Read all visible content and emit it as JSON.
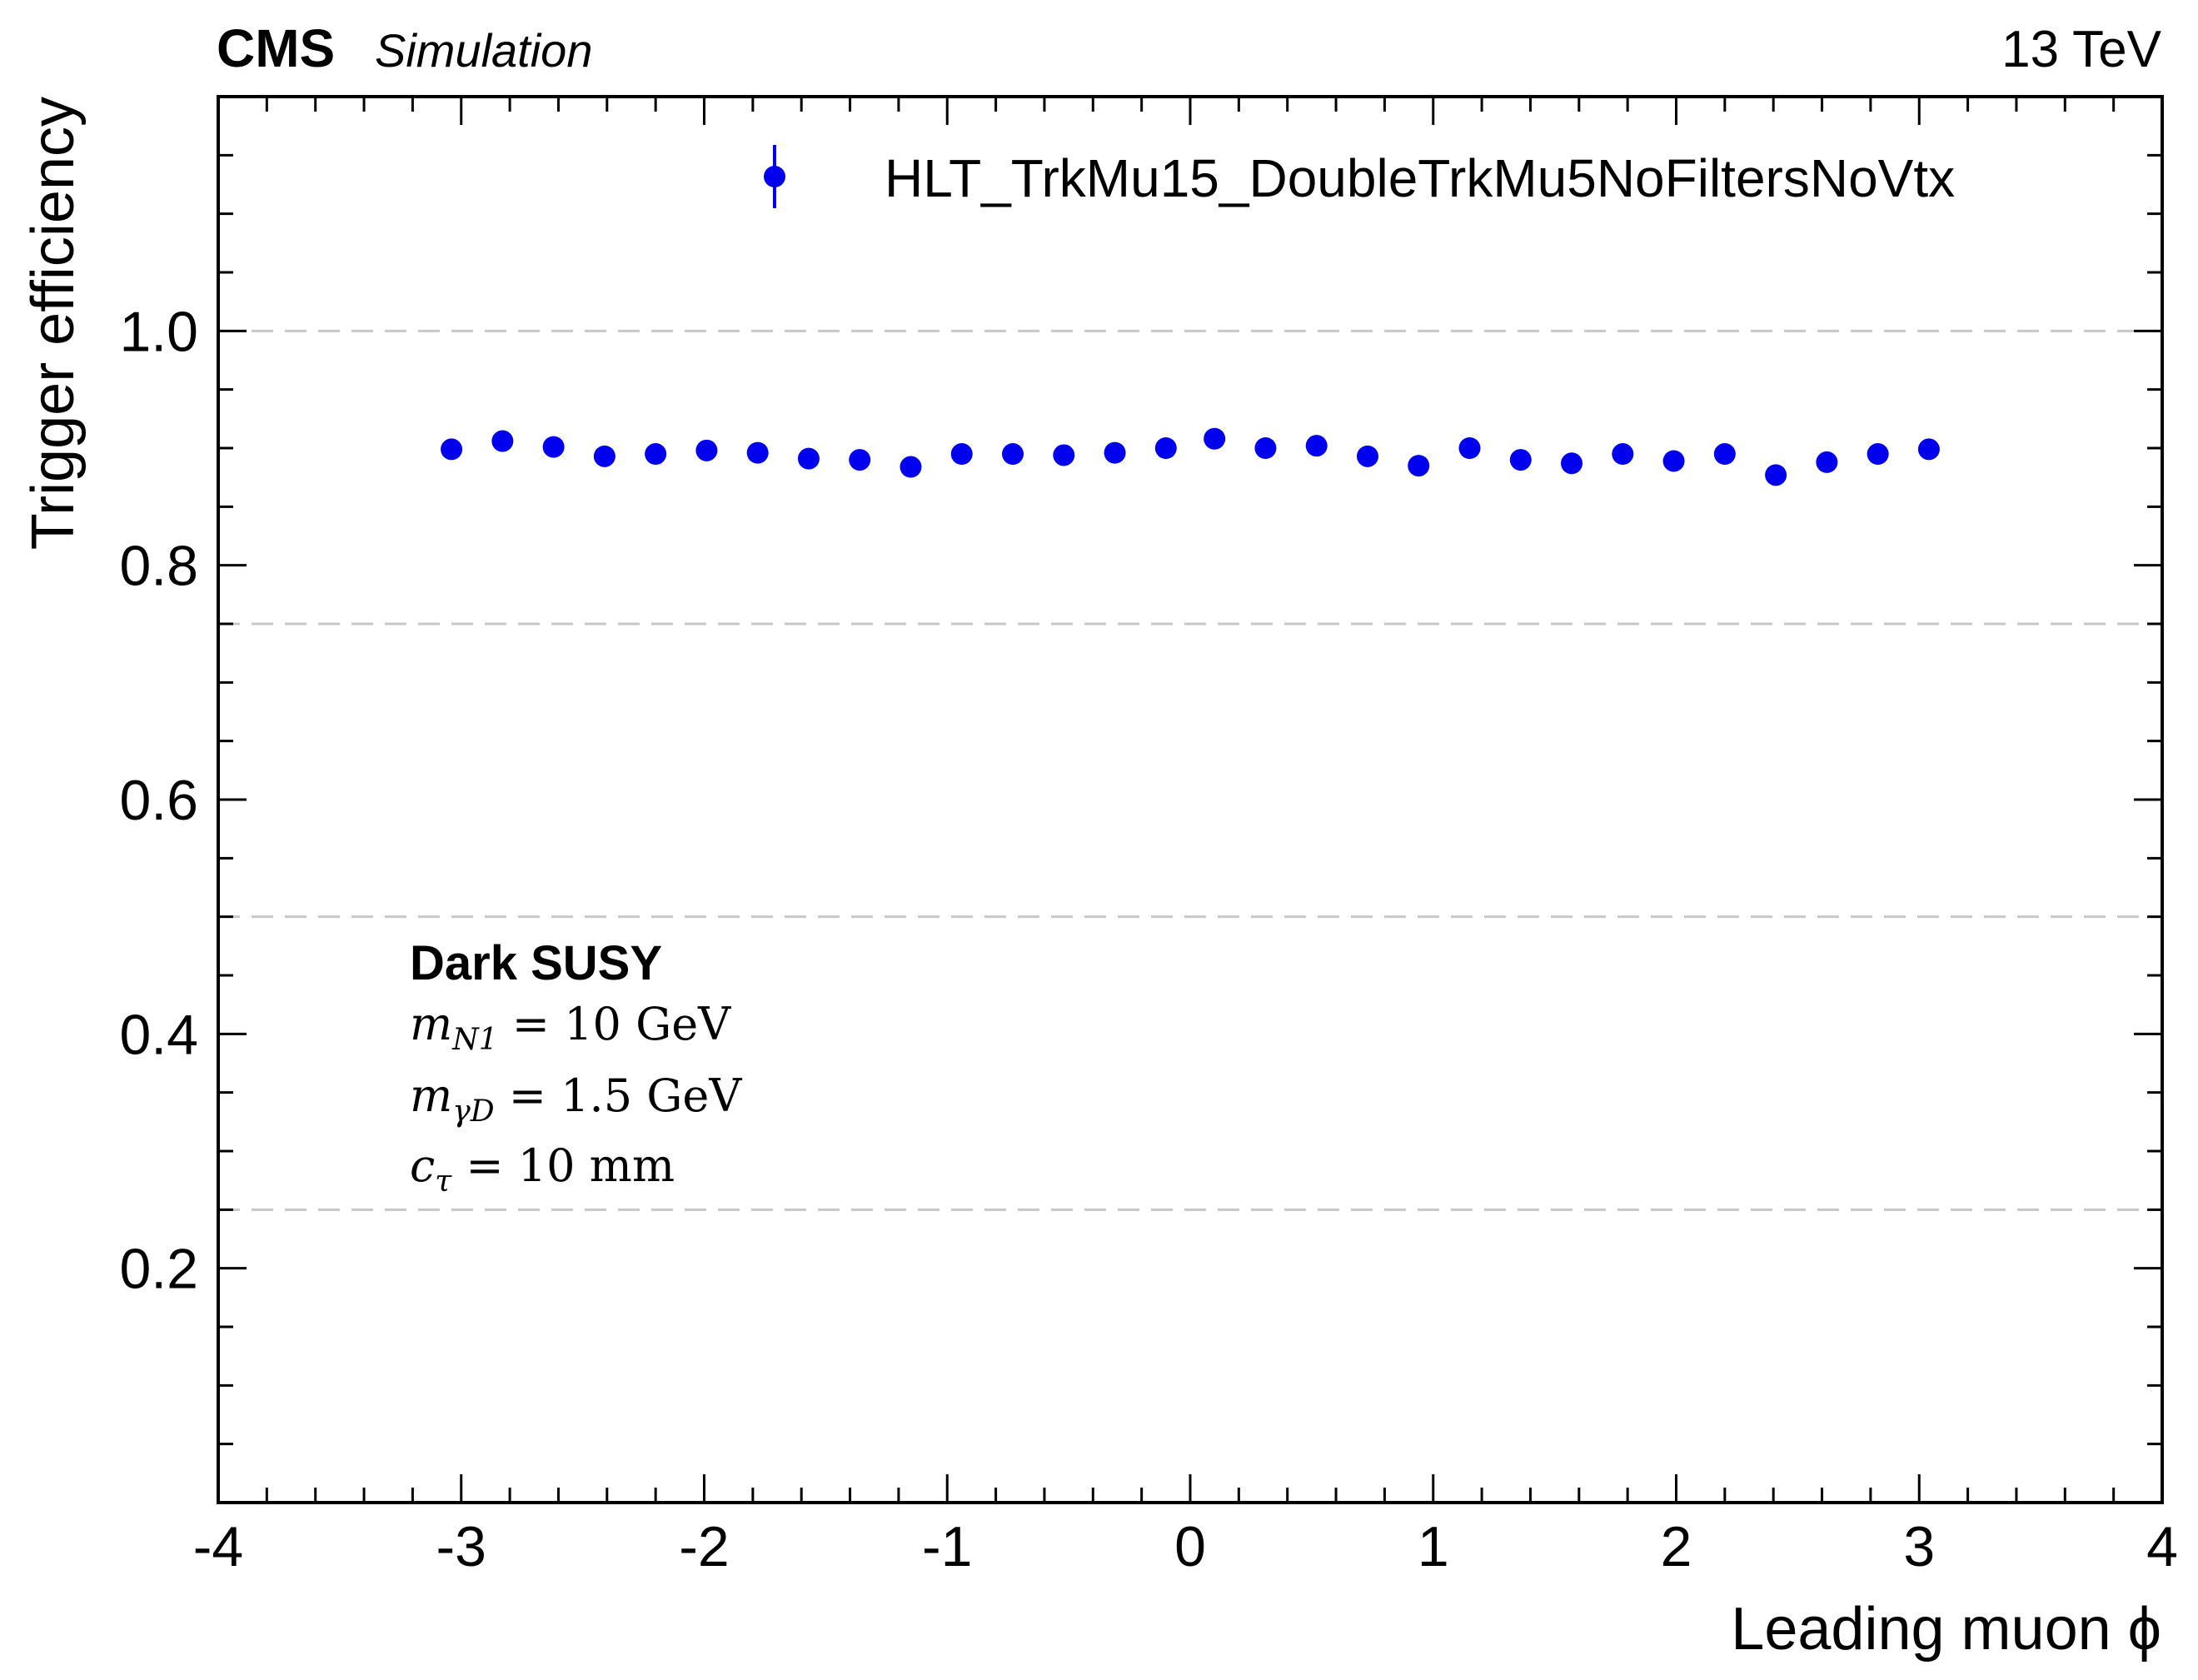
{
  "header": {
    "experiment": "CMS",
    "mode": "Simulation",
    "energy": "13 TeV"
  },
  "colors": {
    "marker": "#0000ee",
    "grid": "#c8c8c8",
    "axis": "#000000"
  },
  "annotation": {
    "title": "Dark SUSY",
    "line1": {
      "var": "m",
      "sub": "N1",
      "rest": " = 10 GeV"
    },
    "line2": {
      "var": "m",
      "sub": "γD",
      "rest": " = 1.5 GeV"
    },
    "line3": {
      "var": "c",
      "sub": "τ",
      "rest": " = 10 mm"
    }
  },
  "chart_data": {
    "type": "scatter",
    "xlabel": "Leading muon ϕ",
    "ylabel": "Trigger efficiency",
    "xlim": [
      -4,
      4
    ],
    "ylim": [
      0,
      1.2
    ],
    "x_ticks": [
      -4,
      -3,
      -2,
      -1,
      0,
      1,
      2,
      3,
      4
    ],
    "x_tick_labels": [
      "-4",
      "-3",
      "-2",
      "-1",
      "0",
      "1",
      "2",
      "3",
      "4"
    ],
    "y_ticks": [
      0.2,
      0.4,
      0.6,
      0.8,
      1.0
    ],
    "y_tick_labels": [
      "0.2",
      "0.4",
      "0.6",
      "0.8",
      "1.0"
    ],
    "grid": "horizontal dashed at 0.25, 0.5, 0.75, 1.0",
    "grid_y": [
      0.25,
      0.5,
      0.75,
      1.0
    ],
    "legend_position": "top-right",
    "series": [
      {
        "name": "HLT_TrkMu15_DoubleTrkMu5NoFiltersNoVtx",
        "x": [
          -3.04,
          -2.83,
          -2.62,
          -2.41,
          -2.2,
          -1.99,
          -1.78,
          -1.57,
          -1.36,
          -1.15,
          -0.94,
          -0.73,
          -0.52,
          -0.31,
          -0.1,
          0.1,
          0.31,
          0.52,
          0.73,
          0.94,
          1.15,
          1.36,
          1.57,
          1.78,
          1.99,
          2.2,
          2.41,
          2.62,
          2.83,
          3.04
        ],
        "y": [
          0.899,
          0.906,
          0.901,
          0.893,
          0.895,
          0.898,
          0.896,
          0.891,
          0.89,
          0.884,
          0.895,
          0.895,
          0.894,
          0.896,
          0.9,
          0.908,
          0.9,
          0.902,
          0.893,
          0.885,
          0.9,
          0.89,
          0.887,
          0.895,
          0.889,
          0.895,
          0.877,
          0.888,
          0.895,
          0.899
        ]
      }
    ]
  }
}
